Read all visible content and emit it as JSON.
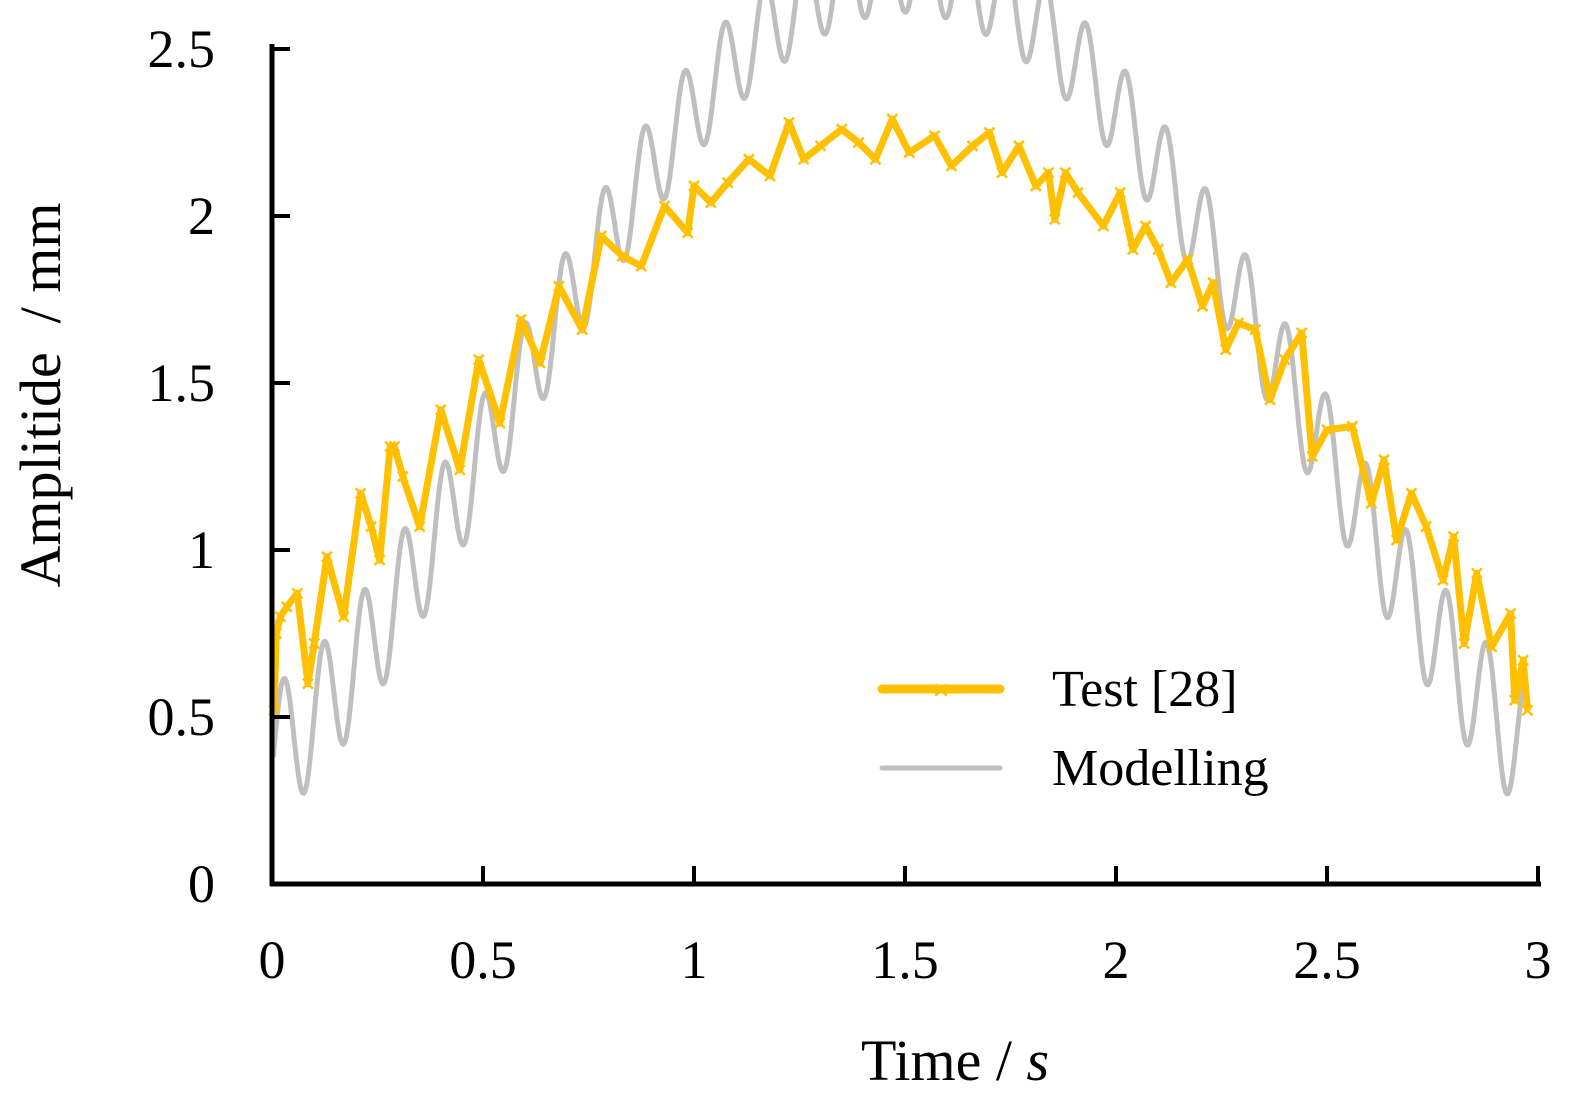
{
  "chart_data": {
    "type": "line",
    "title": "",
    "xlabel_main": "Time",
    "xlabel_sep": " / ",
    "xlabel_unit": "s",
    "ylabel": "Amplitide  / mm",
    "xlim": [
      0,
      3
    ],
    "ylim": [
      0,
      2.5
    ],
    "x_ticks": [
      0,
      0.5,
      1,
      1.5,
      2,
      2.5,
      3
    ],
    "x_tick_labels": [
      "0",
      "0.5",
      "1",
      "1.5",
      "2",
      "2.5",
      "3"
    ],
    "y_ticks": [
      0,
      0.5,
      1,
      1.5,
      2,
      2.5
    ],
    "y_tick_labels": [
      "0",
      "0.5",
      "1",
      "1.5",
      "2",
      "2.5"
    ],
    "grid": false,
    "legend_position": "lower-right",
    "series": [
      {
        "name": "Test [28]",
        "color": "#FFC000",
        "marker": "x",
        "x": [
          0.005,
          0.01,
          0.02,
          0.035,
          0.06,
          0.085,
          0.1,
          0.13,
          0.17,
          0.21,
          0.235,
          0.255,
          0.28,
          0.29,
          0.31,
          0.35,
          0.4,
          0.445,
          0.49,
          0.54,
          0.59,
          0.635,
          0.68,
          0.735,
          0.78,
          0.83,
          0.875,
          0.93,
          0.985,
          1.0,
          1.04,
          1.08,
          1.13,
          1.18,
          1.225,
          1.26,
          1.3,
          1.35,
          1.39,
          1.43,
          1.47,
          1.51,
          1.57,
          1.61,
          1.66,
          1.7,
          1.73,
          1.77,
          1.81,
          1.84,
          1.855,
          1.88,
          1.91,
          1.97,
          2.01,
          2.04,
          2.07,
          2.1,
          2.13,
          2.17,
          2.205,
          2.23,
          2.26,
          2.29,
          2.33,
          2.365,
          2.4,
          2.44,
          2.465,
          2.5,
          2.56,
          2.605,
          2.635,
          2.665,
          2.7,
          2.735,
          2.775,
          2.8,
          2.825,
          2.855,
          2.89,
          2.935,
          2.945,
          2.965,
          2.975
        ],
        "y": [
          0.52,
          0.75,
          0.8,
          0.83,
          0.87,
          0.6,
          0.72,
          0.98,
          0.8,
          1.17,
          1.07,
          0.97,
          1.31,
          1.31,
          1.22,
          1.07,
          1.42,
          1.24,
          1.57,
          1.38,
          1.69,
          1.56,
          1.79,
          1.66,
          1.94,
          1.88,
          1.85,
          2.03,
          1.95,
          2.09,
          2.04,
          2.1,
          2.17,
          2.12,
          2.28,
          2.17,
          2.21,
          2.26,
          2.22,
          2.17,
          2.29,
          2.19,
          2.24,
          2.15,
          2.21,
          2.25,
          2.13,
          2.21,
          2.09,
          2.13,
          1.99,
          2.13,
          2.07,
          1.97,
          2.07,
          1.9,
          1.97,
          1.9,
          1.8,
          1.87,
          1.73,
          1.8,
          1.6,
          1.68,
          1.66,
          1.45,
          1.57,
          1.65,
          1.28,
          1.36,
          1.37,
          1.14,
          1.27,
          1.03,
          1.17,
          1.07,
          0.91,
          1.04,
          0.72,
          0.93,
          0.71,
          0.81,
          0.55,
          0.67,
          0.52
        ]
      },
      {
        "name": "Modelling",
        "color": "#BFBFBF",
        "model": "0.40 + 2.35*sin(pi*t/3)^1.4 + ripple; ripple amplitude 0.20 - 0.06*sin(pi*t/3), period 0.095 s",
        "samples_per_second": 400
      }
    ]
  }
}
